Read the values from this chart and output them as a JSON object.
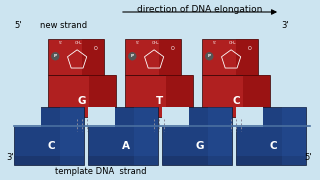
{
  "bg_color": "#cce4f0",
  "title": "direction of DNA elongation",
  "title_fontsize": 6.5,
  "red_dark": "#7a0000",
  "red_mid": "#b02020",
  "red_light": "#cc3333",
  "blue_dark": "#1a3060",
  "blue_mid": "#1e4080",
  "blue_light": "#2a5aaa",
  "nucleotides_top": [
    "G",
    "T",
    "C"
  ],
  "nucleotides_bottom": [
    "C",
    "A",
    "G",
    "C"
  ],
  "label_5_new": "5'",
  "label_3_new": "3'",
  "label_3_template": "3'",
  "label_5_template": "5'",
  "new_strand_label": "new strand",
  "template_label": "template DNA  strand"
}
